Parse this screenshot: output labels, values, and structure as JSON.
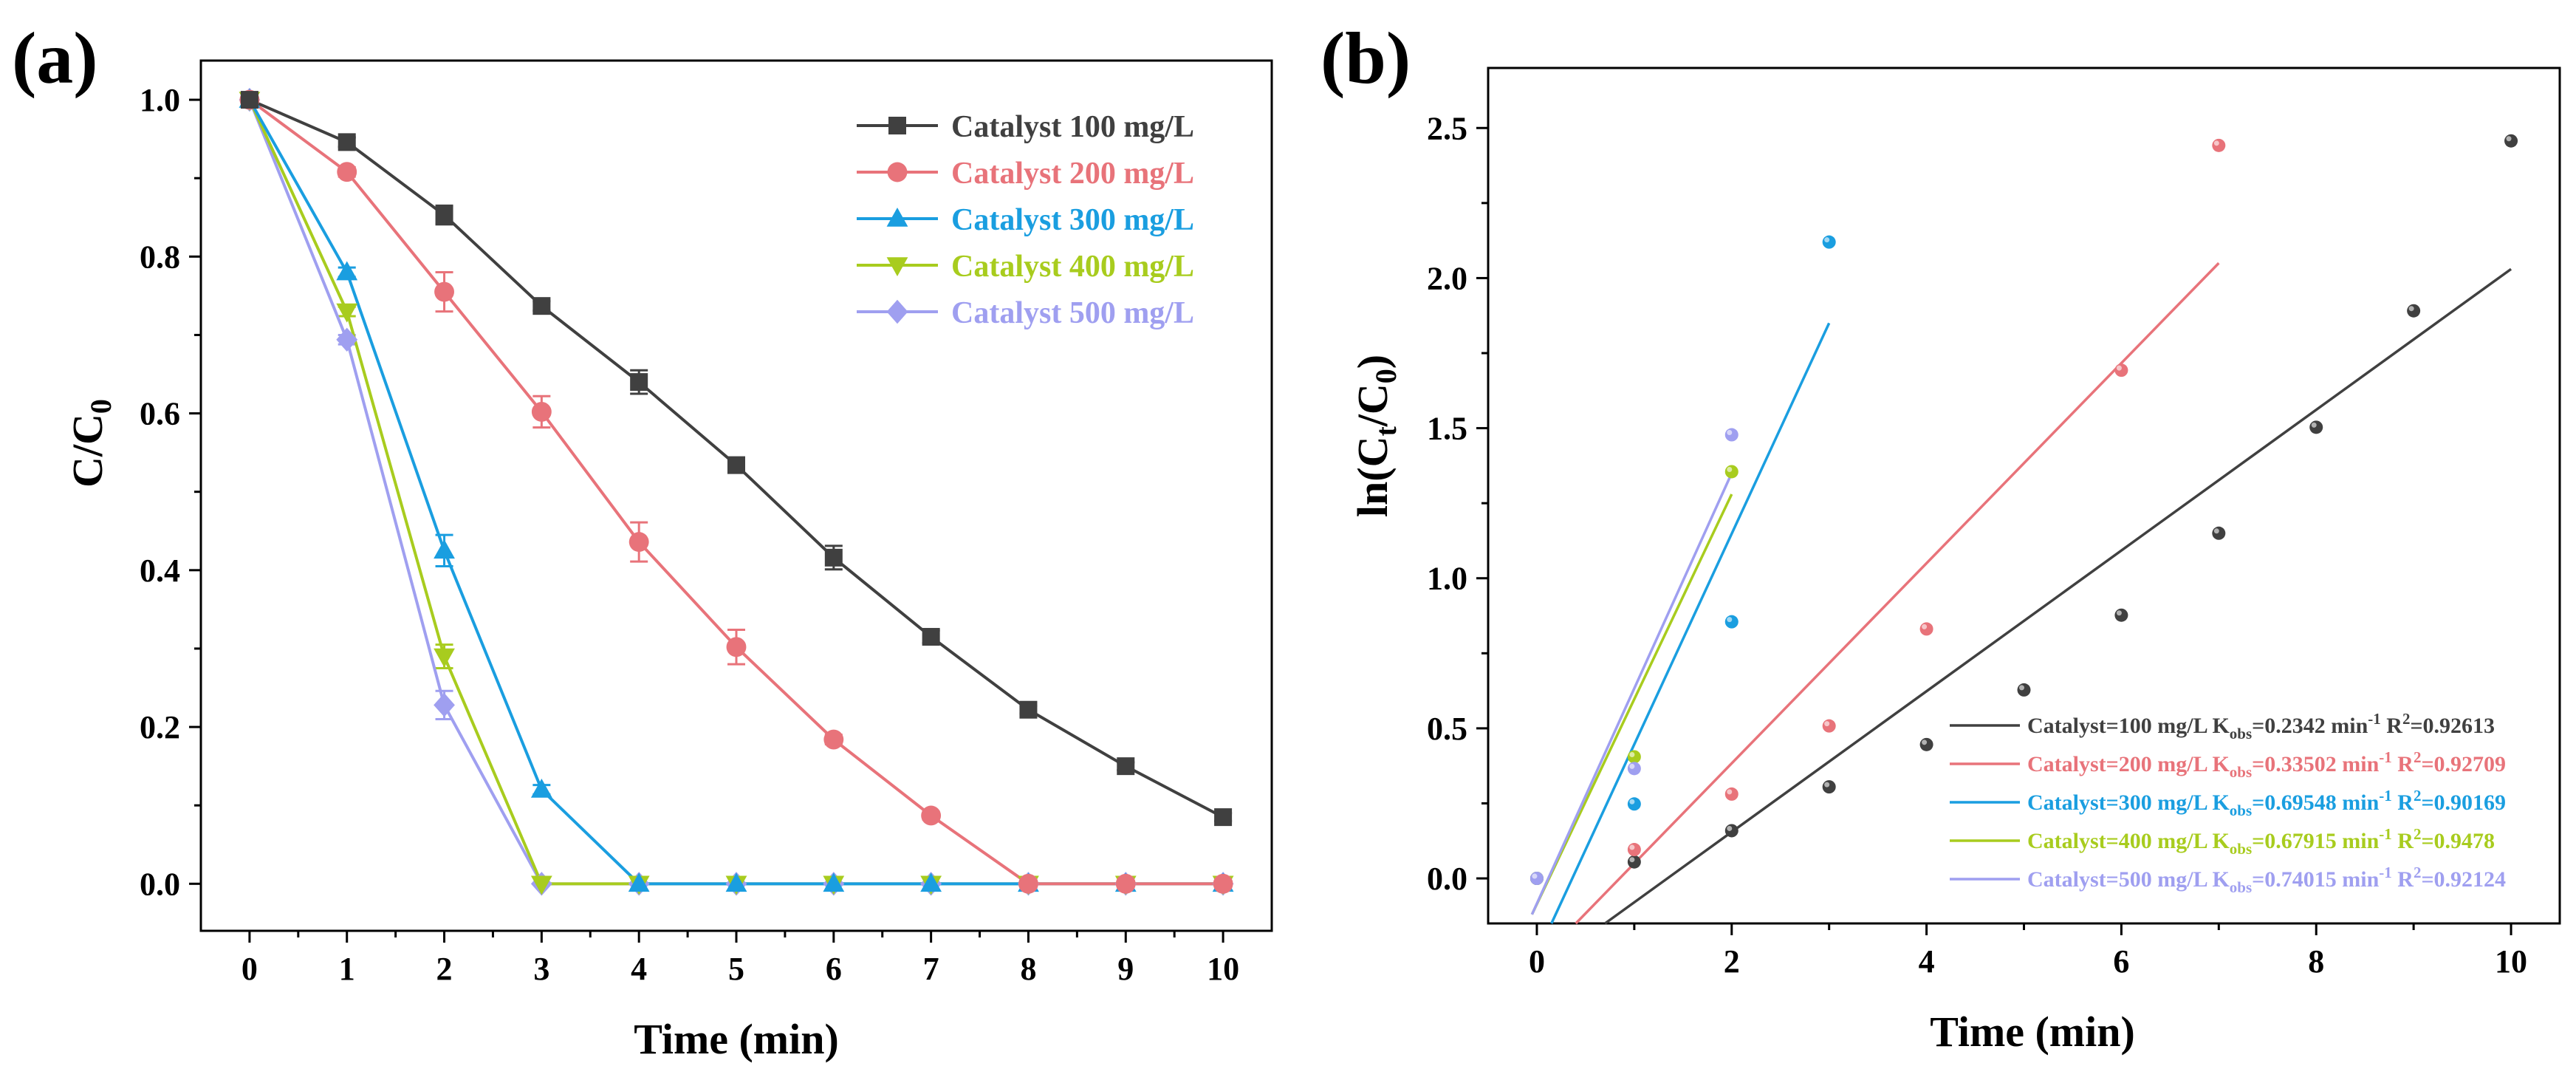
{
  "chart_data": [
    {
      "panel_label": "(a)",
      "type": "line",
      "xlabel": "Time (min)",
      "ylabel_main": "C/C",
      "ylabel_sub": "0",
      "xlim": [
        -0.5,
        10.5
      ],
      "ylim": [
        -0.06,
        1.05
      ],
      "xticks": [
        0,
        1,
        2,
        3,
        4,
        5,
        6,
        7,
        8,
        9,
        10
      ],
      "yticks": [
        0.0,
        0.2,
        0.4,
        0.6,
        0.8,
        1.0
      ],
      "ytick_labels": [
        "0.0",
        "0.2",
        "0.4",
        "0.6",
        "0.8",
        "1.0"
      ],
      "legend_position": "top-right",
      "x": [
        0,
        1,
        2,
        3,
        4,
        5,
        6,
        7,
        8,
        9,
        10
      ],
      "series": [
        {
          "name": "Catalyst 100 mg/L",
          "color": "#404040",
          "marker": "square",
          "values": [
            1.0,
            0.946,
            0.853,
            0.737,
            0.64,
            0.534,
            0.416,
            0.315,
            0.222,
            0.15,
            0.085
          ],
          "errors": [
            0,
            0.006,
            0.012,
            0.006,
            0.015,
            0.007,
            0.015,
            0.008,
            0.005,
            0.005,
            0.005
          ]
        },
        {
          "name": "Catalyst 200 mg/L",
          "color": "#e8737a",
          "marker": "circle",
          "values": [
            1.0,
            0.908,
            0.755,
            0.602,
            0.436,
            0.302,
            0.184,
            0.087,
            0.0,
            0.0,
            0.0
          ],
          "errors": [
            0,
            0.006,
            0.025,
            0.02,
            0.025,
            0.022,
            0.006,
            0.005,
            0,
            0,
            0
          ]
        },
        {
          "name": "Catalyst 300 mg/L",
          "color": "#1a9ee0",
          "marker": "triangle-up",
          "values": [
            1.0,
            0.78,
            0.425,
            0.12,
            0.0,
            0.0,
            0.0,
            0.0,
            0.0,
            0.0,
            0.0
          ],
          "errors": [
            0,
            0.006,
            0.02,
            0.006,
            0,
            0,
            0,
            0,
            0,
            0,
            0
          ]
        },
        {
          "name": "Catalyst 400 mg/L",
          "color": "#a8cc1e",
          "marker": "triangle-down",
          "values": [
            1.0,
            0.73,
            0.29,
            0.0,
            0.0,
            0.0,
            0.0,
            0.0,
            0.0,
            0.0,
            0.0
          ],
          "errors": [
            0,
            0.006,
            0.015,
            0,
            0,
            0,
            0,
            0,
            0,
            0,
            0
          ]
        },
        {
          "name": "Catalyst 500 mg/L",
          "color": "#9f9ff0",
          "marker": "diamond",
          "values": [
            1.0,
            0.694,
            0.228,
            0.0,
            0.0,
            0.0,
            0.0,
            0.0,
            0.0,
            0.0,
            0.0
          ],
          "errors": [
            0,
            0.006,
            0.018,
            0,
            0,
            0,
            0,
            0,
            0,
            0,
            0
          ]
        }
      ]
    },
    {
      "panel_label": "(b)",
      "type": "scatter",
      "xlabel": "Time (min)",
      "ylabel_parts": [
        "ln(C",
        "t",
        "/C",
        "0",
        ")"
      ],
      "xlim": [
        -0.5,
        10.5
      ],
      "ylim": [
        -0.15,
        2.7
      ],
      "xticks": [
        0,
        2,
        4,
        6,
        8,
        10
      ],
      "yticks": [
        0.0,
        0.5,
        1.0,
        1.5,
        2.0,
        2.5
      ],
      "ytick_labels": [
        "0.0",
        "0.5",
        "1.0",
        "1.5",
        "2.0",
        "2.5"
      ],
      "legend_position": "bottom-right",
      "series": [
        {
          "name": "Catalyst=100 mg/L",
          "color": "#404040",
          "k_label": "0.2342",
          "r2_label": "0.92613",
          "k": 0.2342,
          "r2": 0.92613,
          "x": [
            0,
            1,
            2,
            3,
            4,
            5,
            6,
            7,
            8,
            9,
            10
          ],
          "y": [
            0.0,
            0.055,
            0.159,
            0.305,
            0.446,
            0.628,
            0.877,
            1.15,
            1.503,
            1.891,
            2.457
          ],
          "fit_x": [
            0.7,
            10.0
          ],
          "fit_y": [
            -0.15,
            2.03
          ]
        },
        {
          "name": "Catalyst=200 mg/L",
          "color": "#e8737a",
          "k_label": "0.33502",
          "r2_label": "0.92709",
          "k": 0.33502,
          "r2": 0.92709,
          "x": [
            0,
            1,
            2,
            3,
            4,
            6,
            7
          ],
          "y": [
            0.0,
            0.096,
            0.281,
            0.508,
            0.831,
            1.693,
            2.442
          ],
          "fit_x": [
            0.4,
            7.0
          ],
          "fit_y": [
            -0.15,
            2.05
          ]
        },
        {
          "name": "Catalyst=300 mg/L",
          "color": "#1a9ee0",
          "k_label": "0.69548",
          "r2_label": "0.90169",
          "k": 0.69548,
          "r2": 0.90169,
          "x": [
            0,
            1,
            2,
            3
          ],
          "y": [
            0.0,
            0.248,
            0.855,
            2.12
          ],
          "fit_x": [
            0.15,
            3.0
          ],
          "fit_y": [
            -0.15,
            1.85
          ]
        },
        {
          "name": "Catalyst=400 mg/L",
          "color": "#a8cc1e",
          "k_label": "0.67915",
          "r2_label": "0.9478",
          "k": 0.67915,
          "r2": 0.9478,
          "x": [
            0,
            1,
            2
          ],
          "y": [
            0.0,
            0.405,
            1.355
          ],
          "fit_x": [
            -0.05,
            2.0
          ],
          "fit_y": [
            -0.12,
            1.28
          ]
        },
        {
          "name": "Catalyst=500 mg/L",
          "color": "#9f9ff0",
          "k_label": "0.74015",
          "r2_label": "0.92124",
          "k": 0.74015,
          "r2": 0.92124,
          "x": [
            0,
            1,
            2
          ],
          "y": [
            0.0,
            0.366,
            1.478
          ],
          "fit_x": [
            -0.05,
            2.0
          ],
          "fit_y": [
            -0.12,
            1.35
          ]
        }
      ],
      "legend_text": {
        "prefix_k": " K",
        "k_sub": "obs",
        "k_eq": "=",
        "unit": " min",
        "unit_sup": "-1",
        "r2_label": " R",
        "r2_sup": "2",
        "r2_eq": "="
      }
    }
  ]
}
